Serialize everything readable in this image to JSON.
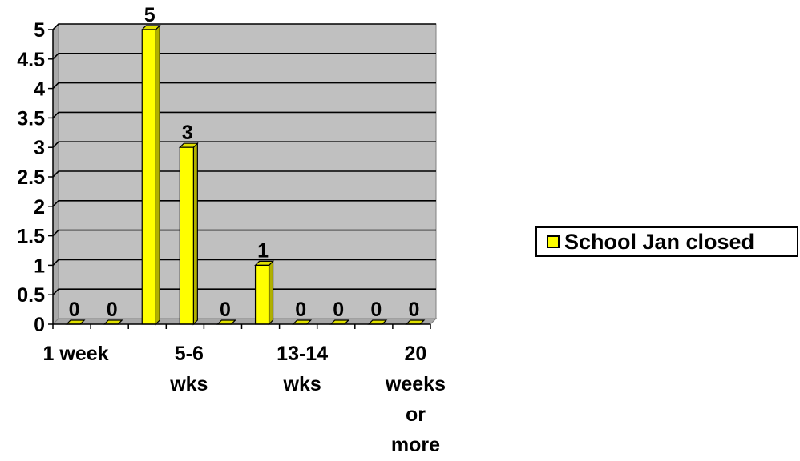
{
  "chart_data": {
    "type": "bar",
    "categories": [
      "1 week",
      "",
      "",
      "5-6 wks",
      "",
      "",
      "13-14 wks",
      "",
      "",
      "20 weeks or more"
    ],
    "tick_label_lines": [
      [
        "1 week"
      ],
      [],
      [],
      [
        "5-6",
        "wks"
      ],
      [],
      [],
      [
        "13-14",
        "wks"
      ],
      [],
      [],
      [
        "20",
        "weeks",
        "or",
        "more"
      ]
    ],
    "series": [
      {
        "name": "School Jan closed",
        "values": [
          0,
          0,
          5,
          3,
          0,
          1,
          0,
          0,
          0,
          0
        ],
        "color": "#ffff00"
      }
    ],
    "data_labels": [
      "0",
      "0",
      "5",
      "3",
      "0",
      "1",
      "0",
      "0",
      "0",
      "0"
    ],
    "y_ticks": [
      "0",
      "0.5",
      "1",
      "1.5",
      "2",
      "2.5",
      "3",
      "3.5",
      "4",
      "4.5",
      "5"
    ],
    "ylim": [
      0,
      5
    ],
    "title": "",
    "xlabel": "",
    "ylabel": "",
    "grid": true,
    "legend": "right",
    "plot_background": "#c0c0c0"
  }
}
